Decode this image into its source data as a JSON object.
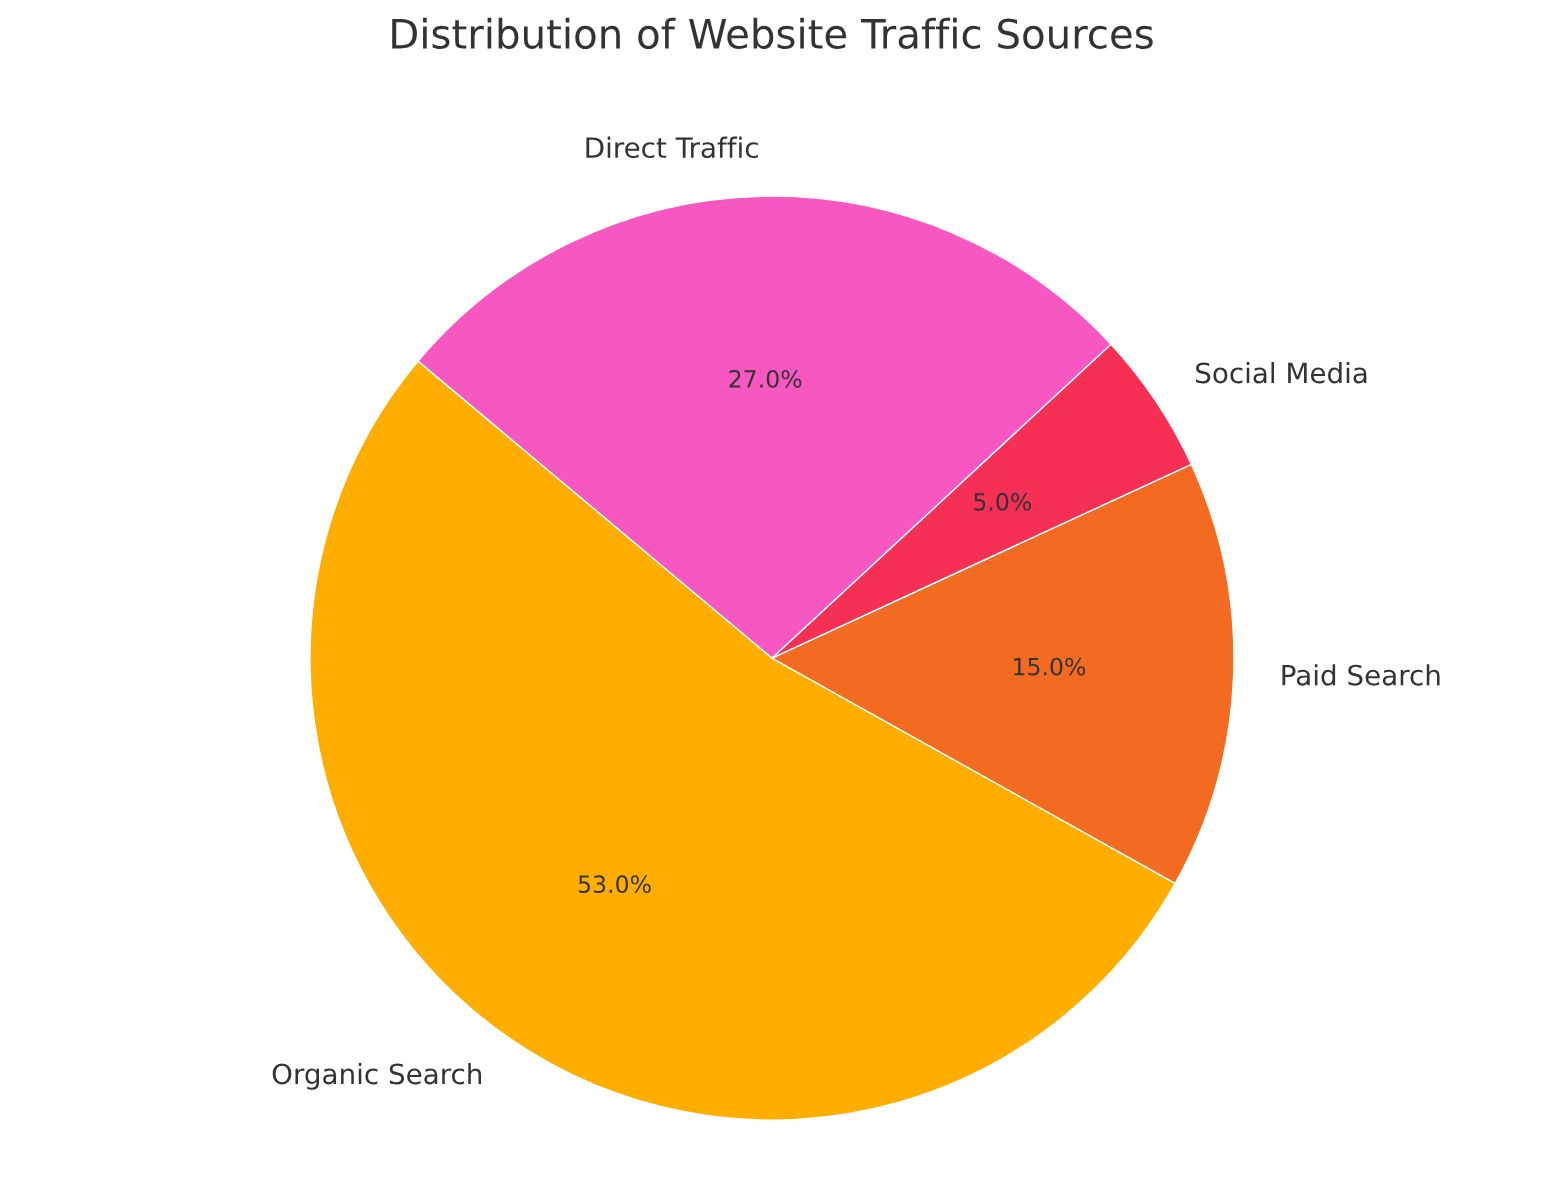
{
  "chart_data": {
    "type": "pie",
    "title": "Distribution of Website Traffic Sources",
    "categories": [
      "Organic Search",
      "Paid Search",
      "Social Media",
      "Direct Traffic"
    ],
    "values": [
      53,
      15,
      5,
      27
    ],
    "colors": [
      "#ffae00",
      "#f26b21",
      "#f53054",
      "#f757c1"
    ],
    "value_labels": [
      "53.0%",
      "15.0%",
      "5.0%",
      "27.0%"
    ]
  }
}
